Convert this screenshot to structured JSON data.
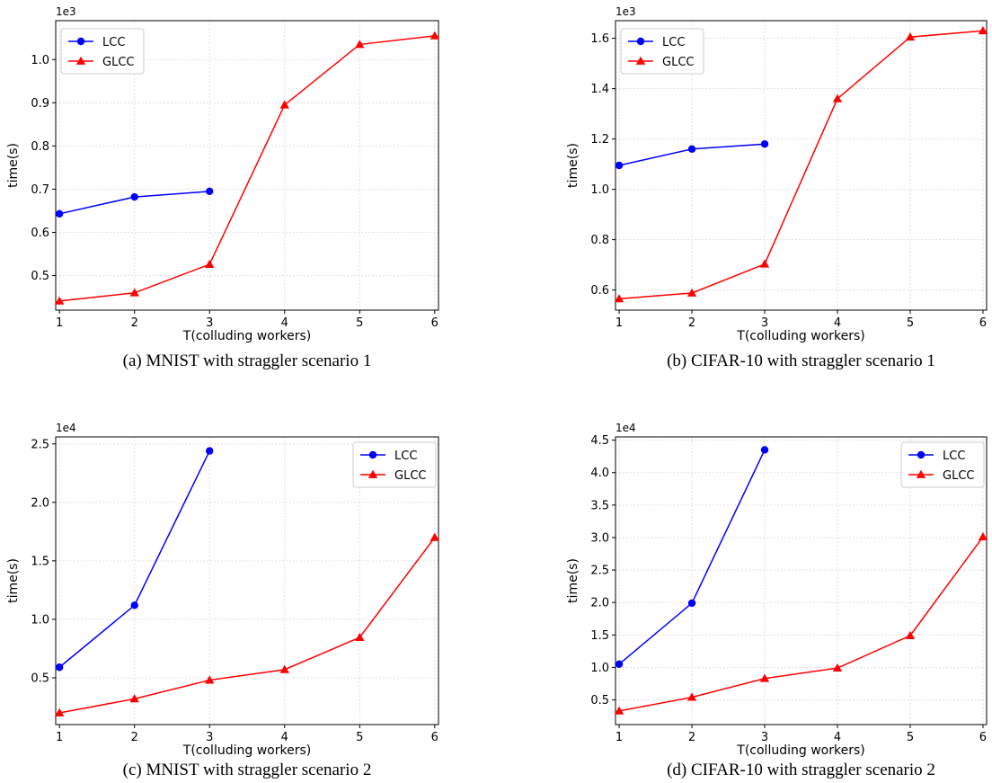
{
  "chart_data": [
    {
      "type": "line",
      "caption": "(a)  MNIST  with  straggler  scenario  1",
      "xlabel": "T(colluding workers)",
      "ylabel": "time(s)",
      "y_multiplier_label": "1e3",
      "xlim": [
        0.95,
        6.05
      ],
      "ylim": [
        0.42,
        1.09
      ],
      "x_ticks": [
        1,
        2,
        3,
        4,
        5,
        6
      ],
      "x_tick_labels": [
        "1",
        "2",
        "3",
        "4",
        "5",
        "6"
      ],
      "y_ticks": [
        0.5,
        0.6,
        0.7,
        0.8,
        0.9,
        1.0
      ],
      "y_tick_labels": [
        "0.5",
        "0.6",
        "0.7",
        "0.8",
        "0.9",
        "1.0"
      ],
      "grid": true,
      "legend_position": "top-left",
      "series": [
        {
          "name": "LCC",
          "color": "#0000ff",
          "marker": "circle",
          "x": [
            1,
            2,
            3
          ],
          "values": [
            0.643,
            0.682,
            0.695
          ]
        },
        {
          "name": "GLCC",
          "color": "#ff0000",
          "marker": "triangle",
          "x": [
            1,
            2,
            3,
            4,
            5,
            6
          ],
          "values": [
            0.441,
            0.46,
            0.526,
            0.895,
            1.035,
            1.055
          ]
        }
      ]
    },
    {
      "type": "line",
      "caption": "(b)  CIFAR-10  with  straggler  scenario  1",
      "xlabel": "T(colluding workers)",
      "ylabel": "time(s)",
      "y_multiplier_label": "1e3",
      "xlim": [
        0.95,
        6.05
      ],
      "ylim": [
        0.52,
        1.67
      ],
      "x_ticks": [
        1,
        2,
        3,
        4,
        5,
        6
      ],
      "x_tick_labels": [
        "1",
        "2",
        "3",
        "4",
        "5",
        "6"
      ],
      "y_ticks": [
        0.6,
        0.8,
        1.0,
        1.2,
        1.4,
        1.6
      ],
      "y_tick_labels": [
        "0.6",
        "0.8",
        "1.0",
        "1.2",
        "1.4",
        "1.6"
      ],
      "grid": true,
      "legend_position": "top-left",
      "series": [
        {
          "name": "LCC",
          "color": "#0000ff",
          "marker": "circle",
          "x": [
            1,
            2,
            3
          ],
          "values": [
            1.095,
            1.16,
            1.18
          ]
        },
        {
          "name": "GLCC",
          "color": "#ff0000",
          "marker": "triangle",
          "x": [
            1,
            2,
            3,
            4,
            5,
            6
          ],
          "values": [
            0.565,
            0.588,
            0.703,
            1.36,
            1.605,
            1.63
          ]
        }
      ]
    },
    {
      "type": "line",
      "caption": "(c)  MNIST  with  straggler  scenario  2",
      "xlabel": "T(colluding workers)",
      "ylabel": "time(s)",
      "y_multiplier_label": "1e4",
      "xlim": [
        0.95,
        6.05
      ],
      "ylim": [
        0.1,
        2.56
      ],
      "x_ticks": [
        1,
        2,
        3,
        4,
        5,
        6
      ],
      "x_tick_labels": [
        "1",
        "2",
        "3",
        "4",
        "5",
        "6"
      ],
      "y_ticks": [
        0.5,
        1.0,
        1.5,
        2.0,
        2.5
      ],
      "y_tick_labels": [
        "0.5",
        "1.0",
        "1.5",
        "2.0",
        "2.5"
      ],
      "grid": true,
      "legend_position": "top-right",
      "series": [
        {
          "name": "LCC",
          "color": "#0000ff",
          "marker": "circle",
          "x": [
            1,
            2,
            3
          ],
          "values": [
            0.59,
            1.12,
            2.44
          ]
        },
        {
          "name": "GLCC",
          "color": "#ff0000",
          "marker": "triangle",
          "x": [
            1,
            2,
            3,
            4,
            5,
            6
          ],
          "values": [
            0.2,
            0.32,
            0.48,
            0.57,
            0.845,
            1.7
          ]
        }
      ]
    },
    {
      "type": "line",
      "caption": "(d)  CIFAR-10  with  straggler  scenario  2",
      "xlabel": "T(colluding workers)",
      "ylabel": "time(s)",
      "y_multiplier_label": "1e4",
      "xlim": [
        0.95,
        6.05
      ],
      "ylim": [
        0.12,
        4.55
      ],
      "x_ticks": [
        1,
        2,
        3,
        4,
        5,
        6
      ],
      "x_tick_labels": [
        "1",
        "2",
        "3",
        "4",
        "5",
        "6"
      ],
      "y_ticks": [
        0.5,
        1.0,
        1.5,
        2.0,
        2.5,
        3.0,
        3.5,
        4.0,
        4.5
      ],
      "y_tick_labels": [
        "0.5",
        "1.0",
        "1.5",
        "2.0",
        "2.5",
        "3.0",
        "3.5",
        "4.0",
        "4.5"
      ],
      "grid": true,
      "legend_position": "top-right",
      "series": [
        {
          "name": "LCC",
          "color": "#0000ff",
          "marker": "circle",
          "x": [
            1,
            2,
            3
          ],
          "values": [
            1.05,
            1.99,
            4.35
          ]
        },
        {
          "name": "GLCC",
          "color": "#ff0000",
          "marker": "triangle",
          "x": [
            1,
            2,
            3,
            4,
            5,
            6
          ],
          "values": [
            0.33,
            0.54,
            0.83,
            0.99,
            1.49,
            3.01
          ]
        }
      ]
    }
  ]
}
